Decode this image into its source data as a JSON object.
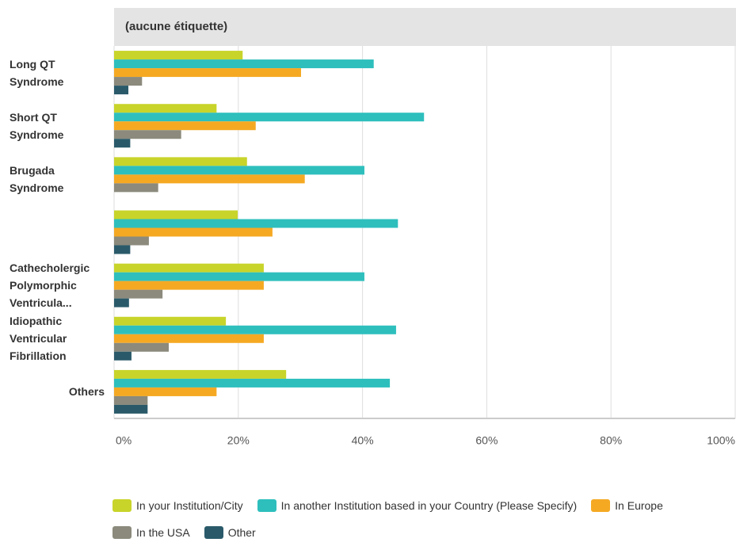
{
  "chart_data": {
    "type": "bar",
    "orientation": "horizontal",
    "title": "(aucune étiquette)",
    "categories": [
      "Long QT Syndrome",
      "Short QT Syndrome",
      "Brugada Syndrome",
      null,
      "Cathecholergic Polymorphic Ventricula...",
      "Idiopathic Ventricular Fibrillation",
      "Others"
    ],
    "series": [
      {
        "name": "In your Institution/City",
        "color": "#c8d42a",
        "values": [
          20.7,
          16.5,
          21.4,
          19.9,
          24.1,
          18.0,
          27.7
        ]
      },
      {
        "name": "In another Institution based in your Country (Please Specify)",
        "color": "#2ebfbd",
        "values": [
          41.8,
          49.9,
          40.3,
          45.7,
          40.3,
          45.4,
          44.4
        ]
      },
      {
        "name": "In Europe",
        "color": "#f5a923",
        "values": [
          30.1,
          22.8,
          30.7,
          25.5,
          24.1,
          24.1,
          16.5
        ]
      },
      {
        "name": "In the USA",
        "color": "#8b8a7c",
        "values": [
          4.5,
          10.8,
          7.1,
          5.6,
          7.8,
          8.8,
          5.4
        ]
      },
      {
        "name": "Other",
        "color": "#2a5a6a",
        "values": [
          2.3,
          2.6,
          0,
          2.6,
          2.4,
          2.8,
          5.4
        ]
      }
    ],
    "xlim": [
      0,
      100
    ],
    "xticks": [
      {
        "value": 0,
        "label": "0%"
      },
      {
        "value": 20,
        "label": "20%"
      },
      {
        "value": 40,
        "label": "40%"
      },
      {
        "value": 60,
        "label": "60%"
      },
      {
        "value": 80,
        "label": "80%"
      },
      {
        "value": 100,
        "label": "100%"
      }
    ],
    "grid": true
  }
}
